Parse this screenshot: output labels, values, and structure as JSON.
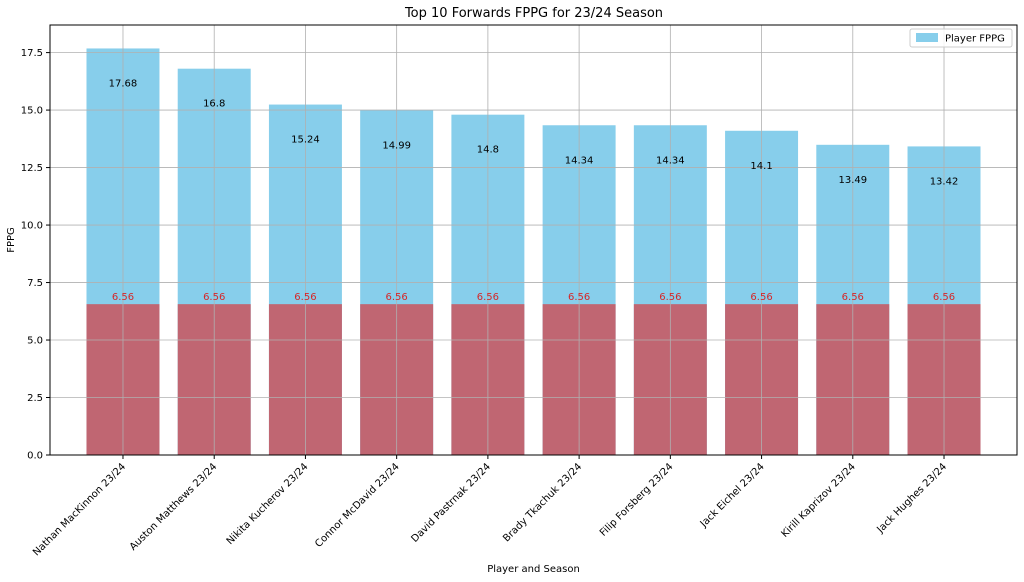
{
  "chart_data": {
    "type": "bar",
    "title": "Top 10 Forwards FPPG for 23/24 Season",
    "xlabel": "Player and Season",
    "ylabel": "FPPG",
    "ylim": [
      0,
      18.7
    ],
    "yticks": [
      "0.0",
      "2.5",
      "5.0",
      "7.5",
      "10.0",
      "12.5",
      "15.0",
      "17.5"
    ],
    "ytick_values": [
      0,
      2.5,
      5,
      7.5,
      10,
      12.5,
      15,
      17.5
    ],
    "grid": true,
    "legend_position": "top-right",
    "categories": [
      "Nathan MacKinnon 23/24",
      "Auston Matthews 23/24",
      "Nikita Kucherov 23/24",
      "Connor McDavid 23/24",
      "David Pastrnak 23/24",
      "Brady Tkachuk 23/24",
      "Filip Forsberg 23/24",
      "Jack Eichel 23/24",
      "Kirill Kaprizov 23/24",
      "Jack Hughes 23/24"
    ],
    "series": [
      {
        "name": "Player FPPG",
        "color": "#87ceeb",
        "values": [
          17.68,
          16.8,
          15.24,
          14.99,
          14.8,
          14.34,
          14.34,
          14.1,
          13.49,
          13.42
        ],
        "value_labels": [
          "17.68",
          "16.8",
          "15.24",
          "14.99",
          "14.8",
          "14.34",
          "14.34",
          "14.1",
          "13.49",
          "13.42"
        ]
      },
      {
        "color": "#c06672",
        "label_color": "#d62728",
        "values": [
          6.56,
          6.56,
          6.56,
          6.56,
          6.56,
          6.56,
          6.56,
          6.56,
          6.56,
          6.56
        ],
        "value_labels": [
          "6.56",
          "6.56",
          "6.56",
          "6.56",
          "6.56",
          "6.56",
          "6.56",
          "6.56",
          "6.56",
          "6.56"
        ]
      }
    ]
  }
}
